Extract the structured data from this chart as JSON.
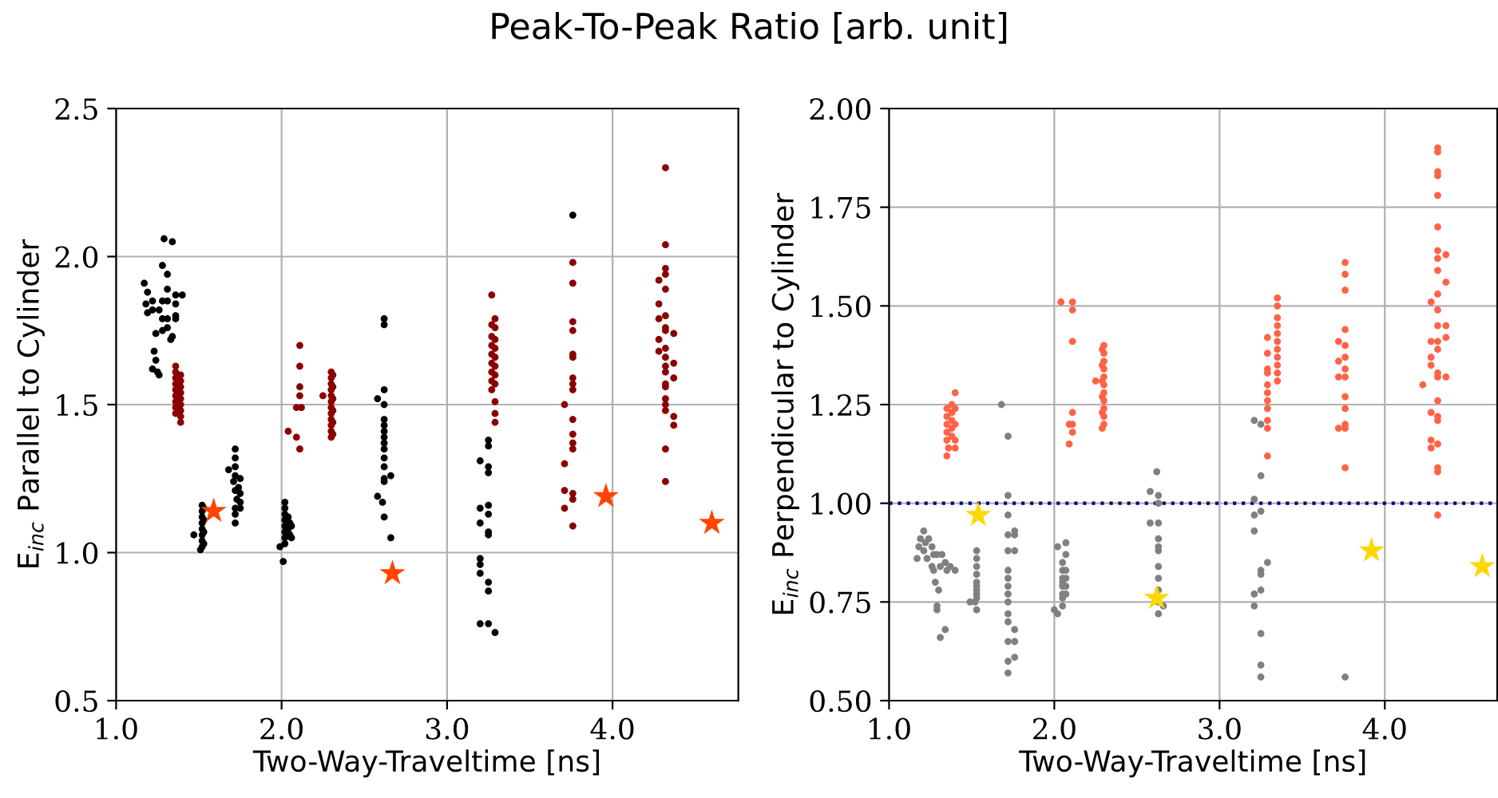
{
  "chart_data": [
    {
      "type": "scatter",
      "title": "Peak-To-Peak Ratio [arb. unit]",
      "xlabel": "Two-Way-Traveltime [ns]",
      "ylabel": "E$_{inc}$ Parallel to Cylinder",
      "xlim": [
        1.0,
        4.76
      ],
      "xticks": [
        {
          "value": 1,
          "label": "1.0"
        },
        {
          "value": 2,
          "label": "2.0"
        },
        {
          "value": 3,
          "label": "3.0"
        },
        {
          "value": 4,
          "label": "4.0"
        }
      ],
      "ylim": [
        0.5,
        2.5
      ],
      "yticks": [
        0.5,
        {
          "value": 1,
          "label": "1.0"
        },
        1.5,
        {
          "value": 2,
          "label": "2.0"
        },
        2.5
      ],
      "grid": true,
      "series": [
        {
          "color": "#000000",
          "marker": "circle",
          "x": [
            1.29,
            1.34,
            1.28,
            1.31,
            1.17,
            1.31,
            1.19,
            1.4,
            1.36,
            1.22,
            1.28,
            1.31,
            1.18,
            1.36,
            1.22,
            1.26,
            1.36,
            1.28,
            1.19,
            1.36,
            1.31,
            1.31,
            1.28,
            1.24,
            1.34,
            1.33,
            1.23,
            1.24,
            1.22,
            1.25,
            1.26,
            1.47,
            1.52,
            1.52,
            1.52,
            1.52,
            1.52,
            1.52,
            1.52,
            1.52,
            1.51,
            1.53,
            1.53,
            1.53,
            1.53,
            1.72,
            1.72,
            1.72,
            1.68,
            1.72,
            1.75,
            1.71,
            1.74,
            1.72,
            1.75,
            1.73,
            1.75,
            1.72,
            1.75,
            1.72,
            1.72,
            2.02,
            2.02,
            2.02,
            2.04,
            2.02,
            2.05,
            2.02,
            2.04,
            2.06,
            2.02,
            2.05,
            2.02,
            2.06,
            1.99,
            2.02,
            2.01,
            2.62,
            2.62,
            2.62,
            2.58,
            2.62,
            2.62,
            2.62,
            2.62,
            2.62,
            2.62,
            2.62,
            2.62,
            2.62,
            2.66,
            2.62,
            2.62,
            2.58,
            2.61,
            2.62,
            2.66,
            3.25,
            3.25,
            3.2,
            3.25,
            3.25,
            3.2,
            3.25,
            3.25,
            3.2,
            3.25,
            3.25,
            3.2,
            3.2,
            3.2,
            3.25,
            3.25,
            3.2,
            3.25,
            3.29,
            3.76
          ],
          "values": [
            2.06,
            2.05,
            1.97,
            1.94,
            1.91,
            1.89,
            1.88,
            1.87,
            1.87,
            1.85,
            1.85,
            1.85,
            1.84,
            1.84,
            1.82,
            1.82,
            1.8,
            1.79,
            1.81,
            1.79,
            1.79,
            1.76,
            1.75,
            1.74,
            1.73,
            1.72,
            1.68,
            1.65,
            1.62,
            1.61,
            1.6,
            1.06,
            1.16,
            1.14,
            1.12,
            1.1,
            1.08,
            1.06,
            1.04,
            1.02,
            1.01,
            1.15,
            1.11,
            1.07,
            1.03,
            1.35,
            1.32,
            1.29,
            1.28,
            1.26,
            1.25,
            1.24,
            1.22,
            1.21,
            1.2,
            1.18,
            1.17,
            1.15,
            1.15,
            1.13,
            1.1,
            1.17,
            1.15,
            1.13,
            1.12,
            1.11,
            1.1,
            1.09,
            1.08,
            1.09,
            1.07,
            1.06,
            1.05,
            1.05,
            1.02,
            1.03,
            0.97,
            1.79,
            1.77,
            1.55,
            1.52,
            1.5,
            1.45,
            1.43,
            1.41,
            1.39,
            1.37,
            1.35,
            1.32,
            1.29,
            1.26,
            1.25,
            1.24,
            1.19,
            1.17,
            1.12,
            1.05,
            1.38,
            1.36,
            1.31,
            1.29,
            1.27,
            1.15,
            1.16,
            1.13,
            1.1,
            1.07,
            1.06,
            0.98,
            0.96,
            0.93,
            0.9,
            0.87,
            0.76,
            0.76,
            0.73,
            2.14
          ]
        },
        {
          "color": "#8b0000",
          "marker": "circle",
          "x": [
            1.36,
            1.36,
            1.36,
            1.36,
            1.36,
            1.36,
            1.36,
            1.36,
            1.39,
            1.39,
            1.39,
            1.39,
            1.39,
            1.39,
            1.39,
            1.39,
            1.36,
            1.39,
            2.11,
            2.11,
            2.11,
            2.11,
            2.09,
            2.12,
            2.04,
            2.09,
            2.11,
            2.3,
            2.3,
            2.3,
            2.3,
            2.3,
            2.3,
            2.3,
            2.3,
            2.3,
            2.3,
            2.3,
            2.3,
            2.31,
            2.31,
            2.31,
            2.31,
            2.31,
            2.31,
            2.25,
            3.27,
            3.29,
            3.27,
            3.27,
            3.27,
            3.27,
            3.27,
            3.27,
            3.27,
            3.27,
            3.29,
            3.29,
            3.29,
            3.29,
            3.29,
            3.29,
            3.29,
            3.29,
            3.29,
            3.29,
            3.76,
            3.76,
            3.76,
            3.76,
            3.76,
            3.76,
            3.76,
            3.76,
            3.76,
            3.71,
            3.76,
            3.76,
            3.76,
            3.76,
            3.71,
            3.71,
            3.76,
            3.76,
            3.71,
            3.76,
            4.32,
            4.32,
            4.32,
            4.32,
            4.28,
            4.32,
            4.28,
            4.32,
            4.28,
            4.32,
            4.32,
            4.37,
            4.28,
            4.32,
            4.28,
            4.32,
            4.37,
            4.32,
            4.32,
            4.37,
            4.32,
            4.32,
            4.32,
            4.32,
            4.32,
            4.37,
            4.37,
            4.32,
            4.32
          ],
          "values": [
            1.63,
            1.61,
            1.59,
            1.57,
            1.55,
            1.53,
            1.51,
            1.49,
            1.6,
            1.58,
            1.56,
            1.54,
            1.52,
            1.5,
            1.48,
            1.46,
            1.47,
            1.44,
            1.7,
            1.63,
            1.56,
            1.53,
            1.49,
            1.49,
            1.41,
            1.39,
            1.35,
            1.61,
            1.59,
            1.57,
            1.55,
            1.53,
            1.51,
            1.49,
            1.47,
            1.45,
            1.43,
            1.41,
            1.39,
            1.6,
            1.56,
            1.52,
            1.48,
            1.44,
            1.4,
            1.53,
            1.87,
            1.79,
            1.77,
            1.73,
            1.7,
            1.67,
            1.64,
            1.61,
            1.58,
            1.55,
            1.76,
            1.72,
            1.69,
            1.66,
            1.63,
            1.6,
            1.57,
            1.51,
            1.47,
            1.44,
            1.98,
            1.91,
            1.78,
            1.75,
            1.67,
            1.66,
            1.59,
            1.57,
            1.55,
            1.5,
            1.45,
            1.4,
            1.37,
            1.35,
            1.3,
            1.21,
            1.2,
            1.18,
            1.15,
            1.09,
            2.3,
            2.04,
            1.96,
            1.94,
            1.92,
            1.89,
            1.84,
            1.8,
            1.79,
            1.76,
            1.75,
            1.74,
            1.72,
            1.69,
            1.68,
            1.66,
            1.64,
            1.63,
            1.61,
            1.59,
            1.57,
            1.56,
            1.52,
            1.5,
            1.48,
            1.46,
            1.43,
            1.35,
            1.24
          ]
        },
        {
          "color": "#ff4500",
          "marker": "star",
          "x": [
            1.59,
            2.67,
            3.96,
            4.6
          ],
          "values": [
            1.14,
            0.93,
            1.19,
            1.1
          ]
        }
      ]
    },
    {
      "type": "scatter",
      "xlabel": "Two-Way-Traveltime [ns]",
      "ylabel": "E$_{inc}$ Perpendicular to Cylinder",
      "xlim": [
        1.0,
        4.68
      ],
      "xticks": [
        {
          "value": 1,
          "label": "1.0"
        },
        {
          "value": 2,
          "label": "2.0"
        },
        {
          "value": 3,
          "label": "3.0"
        },
        {
          "value": 4,
          "label": "4.0"
        }
      ],
      "ylim": [
        0.5,
        2.0
      ],
      "yticks": [
        {
          "value": 0.5,
          "label": "0.50"
        },
        0.75,
        {
          "value": 1,
          "label": "1.00"
        },
        1.25,
        {
          "value": 1.5,
          "label": "1.50"
        },
        1.75,
        {
          "value": 2,
          "label": "2.00"
        }
      ],
      "grid": true,
      "ref_lines": [
        {
          "axis": "y",
          "value": 1.0,
          "color": "#000080",
          "line_style": "dotted"
        }
      ],
      "series": [
        {
          "color": "#808080",
          "marker": "circle",
          "x": [
            1.21,
            1.19,
            1.22,
            1.24,
            1.18,
            1.21,
            1.26,
            1.27,
            1.17,
            1.23,
            1.29,
            1.32,
            1.34,
            1.26,
            1.31,
            1.37,
            1.4,
            1.35,
            1.27,
            1.28,
            1.3,
            1.29,
            1.29,
            1.34,
            1.31,
            1.53,
            1.53,
            1.53,
            1.53,
            1.53,
            1.53,
            1.53,
            1.53,
            1.53,
            1.49,
            1.52,
            1.53,
            1.68,
            1.72,
            1.72,
            1.72,
            1.76,
            1.72,
            1.76,
            1.72,
            1.76,
            1.72,
            1.72,
            1.72,
            1.72,
            1.72,
            1.72,
            1.72,
            1.76,
            1.76,
            1.72,
            1.76,
            1.72,
            1.72,
            2.07,
            2.02,
            2.07,
            2.05,
            2.05,
            2.05,
            2.05,
            2.05,
            2.05,
            2.05,
            2.05,
            2.07,
            2.07,
            2.07,
            2.07,
            2.0,
            2.02,
            2.62,
            2.58,
            2.63,
            2.63,
            2.58,
            2.63,
            2.63,
            2.63,
            2.63,
            2.63,
            2.63,
            2.63,
            2.63,
            2.66,
            2.63,
            3.21,
            3.25,
            3.25,
            3.21,
            3.25,
            3.21,
            3.21,
            3.29,
            3.25,
            3.25,
            3.25,
            3.21,
            3.21,
            3.25,
            3.25,
            3.25,
            3.76
          ],
          "values": [
            0.93,
            0.91,
            0.9,
            0.91,
            0.89,
            0.88,
            0.89,
            0.87,
            0.86,
            0.86,
            0.87,
            0.87,
            0.85,
            0.84,
            0.84,
            0.84,
            0.83,
            0.83,
            0.83,
            0.8,
            0.78,
            0.74,
            0.73,
            0.68,
            0.66,
            0.88,
            0.86,
            0.84,
            0.82,
            0.8,
            0.79,
            0.78,
            0.77,
            0.76,
            0.75,
            0.75,
            0.73,
            1.25,
            1.17,
            1.02,
            0.97,
            0.93,
            0.92,
            0.92,
            0.88,
            0.88,
            0.83,
            0.81,
            0.79,
            0.77,
            0.75,
            0.72,
            0.7,
            0.68,
            0.65,
            0.65,
            0.61,
            0.6,
            0.57,
            0.9,
            0.89,
            0.87,
            0.85,
            0.83,
            0.81,
            0.8,
            0.79,
            0.77,
            0.76,
            0.74,
            0.83,
            0.81,
            0.79,
            0.77,
            0.73,
            0.72,
            1.08,
            1.03,
            1.02,
            1.0,
            0.95,
            0.95,
            0.91,
            0.89,
            0.88,
            0.84,
            0.81,
            0.78,
            0.75,
            0.74,
            0.72,
            1.21,
            1.2,
            1.07,
            1.01,
            0.98,
            0.97,
            0.93,
            0.85,
            0.83,
            0.82,
            0.78,
            0.77,
            0.74,
            0.67,
            0.59,
            0.56,
            0.56
          ]
        },
        {
          "color": "#ff6347",
          "marker": "circle",
          "x": [
            1.4,
            1.35,
            1.35,
            1.35,
            1.35,
            1.35,
            1.38,
            1.38,
            1.38,
            1.38,
            1.38,
            1.4,
            1.4,
            1.4,
            1.36,
            1.35,
            1.4,
            2.04,
            2.11,
            2.11,
            2.11,
            2.11,
            2.09,
            2.11,
            2.11,
            2.09,
            2.3,
            2.3,
            2.3,
            2.3,
            2.3,
            2.3,
            2.3,
            2.3,
            2.3,
            2.3,
            2.3,
            2.29,
            2.29,
            2.29,
            2.29,
            2.29,
            2.29,
            2.25,
            3.35,
            3.35,
            3.35,
            3.35,
            3.35,
            3.35,
            3.35,
            3.35,
            3.35,
            3.35,
            3.35,
            3.29,
            3.29,
            3.29,
            3.29,
            3.29,
            3.29,
            3.29,
            3.29,
            3.29,
            3.29,
            3.29,
            3.76,
            3.76,
            3.76,
            3.76,
            3.72,
            3.76,
            3.76,
            3.72,
            3.76,
            3.72,
            3.76,
            3.76,
            3.76,
            3.76,
            3.72,
            3.76,
            3.76,
            4.32,
            4.32,
            4.32,
            4.32,
            4.32,
            4.32,
            4.32,
            4.32,
            4.37,
            4.32,
            4.37,
            4.28,
            4.32,
            4.32,
            4.32,
            4.37,
            4.28,
            4.32,
            4.37,
            4.32,
            4.28,
            4.28,
            4.32,
            4.37,
            4.32,
            4.23,
            4.32,
            4.28,
            4.32,
            4.32,
            4.28,
            4.32,
            4.28,
            4.32,
            4.32,
            4.32
          ],
          "values": [
            1.28,
            1.24,
            1.22,
            1.2,
            1.18,
            1.16,
            1.25,
            1.23,
            1.21,
            1.19,
            1.17,
            1.24,
            1.2,
            1.16,
            1.14,
            1.12,
            1.14,
            1.51,
            1.51,
            1.49,
            1.41,
            1.23,
            1.2,
            1.2,
            1.18,
            1.15,
            1.4,
            1.38,
            1.36,
            1.34,
            1.32,
            1.3,
            1.28,
            1.26,
            1.24,
            1.22,
            1.2,
            1.39,
            1.35,
            1.31,
            1.27,
            1.23,
            1.19,
            1.31,
            1.52,
            1.5,
            1.47,
            1.45,
            1.43,
            1.41,
            1.39,
            1.37,
            1.35,
            1.33,
            1.31,
            1.42,
            1.38,
            1.34,
            1.33,
            1.3,
            1.28,
            1.26,
            1.24,
            1.21,
            1.19,
            1.12,
            1.61,
            1.58,
            1.54,
            1.44,
            1.41,
            1.4,
            1.37,
            1.36,
            1.34,
            1.32,
            1.32,
            1.27,
            1.24,
            1.2,
            1.19,
            1.19,
            1.09,
            1.9,
            1.89,
            1.84,
            1.83,
            1.78,
            1.7,
            1.64,
            1.62,
            1.63,
            1.59,
            1.56,
            1.51,
            1.53,
            1.49,
            1.45,
            1.45,
            1.41,
            1.41,
            1.42,
            1.39,
            1.37,
            1.35,
            1.33,
            1.32,
            1.32,
            1.3,
            1.26,
            1.23,
            1.22,
            1.21,
            1.16,
            1.15,
            1.14,
            1.09,
            1.08,
            0.97
          ]
        },
        {
          "color": "#ffd700",
          "marker": "star",
          "x": [
            1.54,
            2.62,
            3.92,
            4.59
          ],
          "values": [
            0.97,
            0.76,
            0.88,
            0.84
          ]
        }
      ]
    }
  ]
}
